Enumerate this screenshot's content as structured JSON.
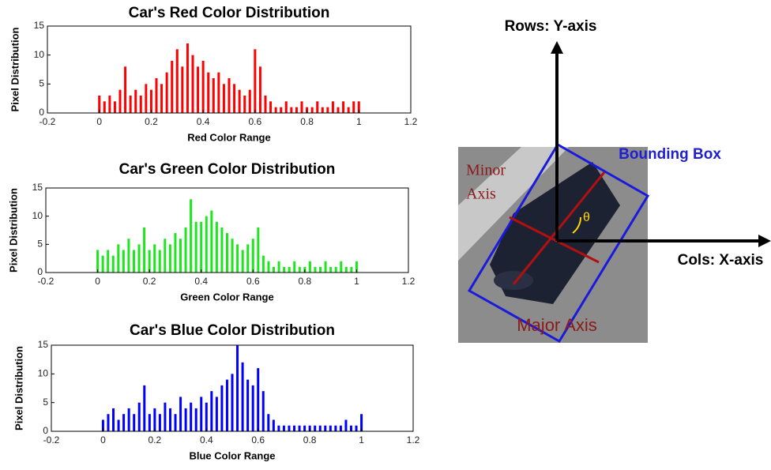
{
  "chart_data": [
    {
      "type": "bar",
      "title": "Car's Red Color Distribution",
      "x_label": "Red Color Range",
      "y_label": "Pixel Distribution",
      "color": "#ff0000",
      "x": [
        0,
        0.02,
        0.04,
        0.06,
        0.08,
        0.1,
        0.12,
        0.14,
        0.16,
        0.18,
        0.2,
        0.22,
        0.24,
        0.26,
        0.28,
        0.3,
        0.32,
        0.34,
        0.36,
        0.38,
        0.4,
        0.42,
        0.44,
        0.46,
        0.48,
        0.5,
        0.52,
        0.54,
        0.56,
        0.58,
        0.6,
        0.62,
        0.64,
        0.66,
        0.68,
        0.7,
        0.72,
        0.74,
        0.76,
        0.78,
        0.8,
        0.82,
        0.84,
        0.86,
        0.88,
        0.9,
        0.92,
        0.94,
        0.96,
        0.98,
        1
      ],
      "values": [
        3,
        2,
        3,
        2,
        4,
        8,
        3,
        4,
        3,
        5,
        4,
        6,
        5,
        7,
        9,
        11,
        8,
        12,
        10,
        8,
        9,
        7,
        6,
        7,
        5,
        6,
        5,
        4,
        3,
        4,
        11,
        8,
        3,
        2,
        1,
        1,
        2,
        1,
        1,
        2,
        1,
        1,
        2,
        1,
        1,
        2,
        1,
        2,
        1,
        2,
        2
      ],
      "xlim": [
        -0.2,
        1.2
      ],
      "xticks": [
        -0.2,
        0,
        0.2,
        0.4,
        0.6,
        0.8,
        1,
        1.2
      ],
      "ylim": [
        0,
        15
      ],
      "yticks": [
        0,
        5,
        10,
        15
      ]
    },
    {
      "type": "bar",
      "title": "Car's Green Color Distribution",
      "x_label": "Green Color Range",
      "y_label": "Pixel Distribution",
      "color": "#1ee61e",
      "x": [
        0,
        0.02,
        0.04,
        0.06,
        0.08,
        0.1,
        0.12,
        0.14,
        0.16,
        0.18,
        0.2,
        0.22,
        0.24,
        0.26,
        0.28,
        0.3,
        0.32,
        0.34,
        0.36,
        0.38,
        0.4,
        0.42,
        0.44,
        0.46,
        0.48,
        0.5,
        0.52,
        0.54,
        0.56,
        0.58,
        0.6,
        0.62,
        0.64,
        0.66,
        0.68,
        0.7,
        0.72,
        0.74,
        0.76,
        0.78,
        0.8,
        0.82,
        0.84,
        0.86,
        0.88,
        0.9,
        0.92,
        0.94,
        0.96,
        0.98,
        1
      ],
      "values": [
        4,
        3,
        4,
        3,
        5,
        4,
        6,
        4,
        5,
        8,
        4,
        5,
        4,
        6,
        5,
        7,
        6,
        8,
        13,
        9,
        9,
        10,
        11,
        9,
        8,
        7,
        6,
        5,
        4,
        5,
        6,
        8,
        3,
        2,
        1,
        2,
        1,
        1,
        2,
        1,
        1,
        2,
        1,
        1,
        2,
        1,
        1,
        2,
        1,
        1,
        2
      ],
      "xlim": [
        -0.2,
        1.2
      ],
      "xticks": [
        -0.2,
        0,
        0.2,
        0.4,
        0.6,
        0.8,
        1,
        1.2
      ],
      "ylim": [
        0,
        15
      ],
      "yticks": [
        0,
        5,
        10,
        15
      ]
    },
    {
      "type": "bar",
      "title": "Car's Blue Color Distribution",
      "x_label": "Blue Color Range",
      "y_label": "Pixel Distribution",
      "color": "#0000ff",
      "x": [
        0,
        0.02,
        0.04,
        0.06,
        0.08,
        0.1,
        0.12,
        0.14,
        0.16,
        0.18,
        0.2,
        0.22,
        0.24,
        0.26,
        0.28,
        0.3,
        0.32,
        0.34,
        0.36,
        0.38,
        0.4,
        0.42,
        0.44,
        0.46,
        0.48,
        0.5,
        0.52,
        0.54,
        0.56,
        0.58,
        0.6,
        0.62,
        0.64,
        0.66,
        0.68,
        0.7,
        0.72,
        0.74,
        0.76,
        0.78,
        0.8,
        0.82,
        0.84,
        0.86,
        0.88,
        0.9,
        0.92,
        0.94,
        0.96,
        0.98,
        1
      ],
      "values": [
        2,
        3,
        4,
        2,
        3,
        4,
        3,
        5,
        8,
        3,
        4,
        3,
        5,
        4,
        3,
        6,
        4,
        5,
        4,
        6,
        5,
        7,
        6,
        8,
        9,
        10,
        15,
        12,
        9,
        8,
        11,
        7,
        3,
        2,
        1,
        1,
        1,
        1,
        1,
        1,
        1,
        1,
        1,
        1,
        1,
        1,
        1,
        2,
        1,
        1,
        3
      ],
      "xlim": [
        -0.2,
        1.2
      ],
      "xticks": [
        -0.2,
        0,
        0.2,
        0.4,
        0.6,
        0.8,
        1,
        1.2
      ],
      "ylim": [
        0,
        15
      ],
      "yticks": [
        0,
        5,
        10,
        15
      ]
    }
  ],
  "diagram": {
    "y_axis_label": "Rows: Y-axis",
    "x_axis_label": "Cols: X-axis",
    "bounding_box_label": "Bounding Box",
    "minor_axis_label": [
      "Minor",
      "Axis"
    ],
    "major_axis_label": "Major Axis",
    "angle_label": "θ"
  }
}
